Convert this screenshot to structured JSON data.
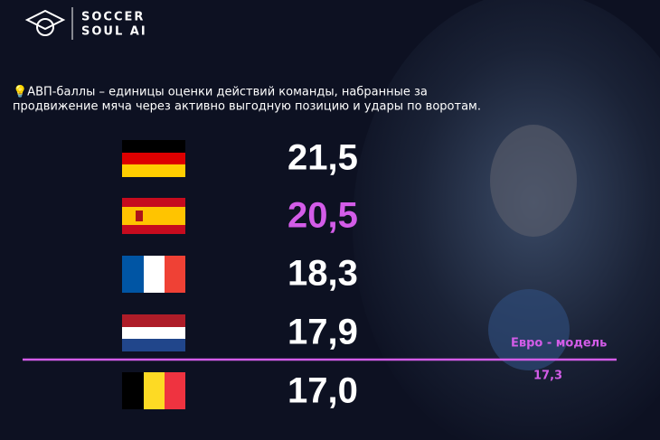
{
  "logo": {
    "line1": "SOCCER",
    "line2": "SOUL AI"
  },
  "note": {
    "line1": "💡АВП-баллы – единицы оценки действий команды, набранные за",
    "line2": "продвижение мяча через активно выгодную позицию и удары по воротам."
  },
  "rows": [
    {
      "value": "21,5"
    },
    {
      "value": "20,5"
    },
    {
      "value": "18,3"
    },
    {
      "value": "17,9"
    },
    {
      "value": "17,0"
    }
  ],
  "reference": {
    "label": "Евро - модель",
    "value": "17,3"
  }
}
